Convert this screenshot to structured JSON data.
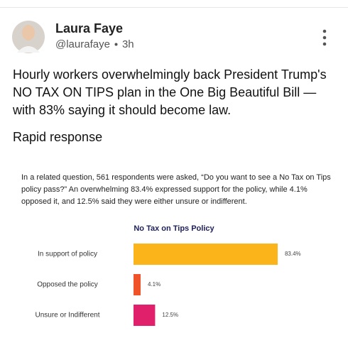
{
  "post": {
    "author": "Laura Faye",
    "handle": "@laurafaye",
    "time": "3h",
    "text": "Hourly workers overwhelmingly back President Trump's NO TAX ON TIPS plan in the One Big Beautiful Bill — with 83% saying it should become law.",
    "text2": "Rapid response"
  },
  "image": {
    "caption": "In a related question, 561 respondents were asked, “Do you want to see a No Tax on Tips policy pass?” An overwhelming 83.4% expressed support for the policy, while 4.1% opposed it, and 12.5% said they were either unsure or indifferent."
  },
  "chart_data": {
    "type": "bar",
    "orientation": "horizontal",
    "title": "No Tax on Tips Policy",
    "categories": [
      "In support of policy",
      "Opposed the policy",
      "Unsure or Indifferent"
    ],
    "values": [
      83.4,
      4.1,
      12.5
    ],
    "value_labels": [
      "83.4%",
      "4.1%",
      "12.5%"
    ],
    "colors": [
      "#fbb41a",
      "#f0522a",
      "#e0206a"
    ]
  }
}
